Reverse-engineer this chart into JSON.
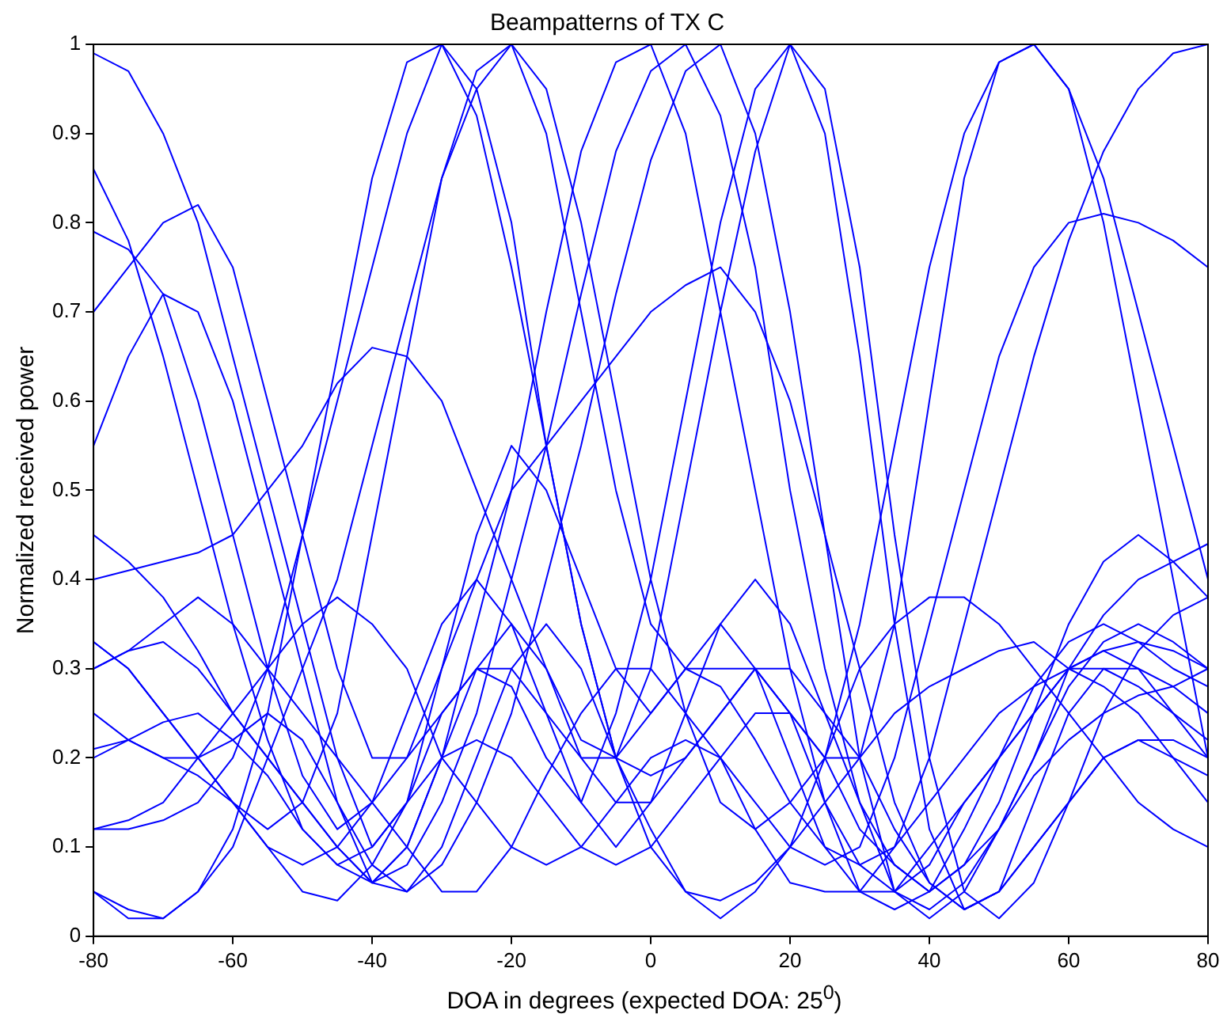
{
  "chart_data": {
    "type": "line",
    "title": "Beampatterns of TX C",
    "xlabel": "DOA in degrees (expected DOA: 25$^{0}$)",
    "ylabel": "Normalized received power",
    "x": [
      -80,
      -75,
      -70,
      -65,
      -60,
      -55,
      -50,
      -45,
      -40,
      -35,
      -30,
      -25,
      -20,
      -15,
      -10,
      -5,
      0,
      5,
      10,
      15,
      20,
      25,
      30,
      35,
      40,
      45,
      50,
      55,
      60,
      65,
      70,
      75,
      80
    ],
    "xlim": [
      -80,
      80
    ],
    "xticks": [
      -80,
      -60,
      -40,
      -20,
      0,
      20,
      40,
      60,
      80
    ],
    "ylim": [
      0,
      1
    ],
    "yticks": [
      0,
      0.1,
      0.2,
      0.3,
      0.4,
      0.5,
      0.6,
      0.7,
      0.8,
      0.9,
      1
    ],
    "grid": false,
    "legend": false,
    "series": [
      {
        "color": "#0000ff",
        "values": [
          0.99,
          0.97,
          0.9,
          0.8,
          0.65,
          0.5,
          0.35,
          0.2,
          0.1,
          0.15,
          0.3,
          0.45,
          0.55,
          0.5,
          0.4,
          0.3,
          0.25,
          0.3,
          0.35,
          0.3,
          0.2,
          0.1,
          0.05,
          0.05,
          0.1,
          0.15,
          0.2,
          0.25,
          0.3,
          0.32,
          0.3,
          0.25,
          0.2
        ]
      },
      {
        "color": "#0000ff",
        "values": [
          0.12,
          0.12,
          0.13,
          0.15,
          0.2,
          0.3,
          0.45,
          0.6,
          0.75,
          0.9,
          1.0,
          0.95,
          0.8,
          0.55,
          0.35,
          0.2,
          0.18,
          0.2,
          0.25,
          0.3,
          0.25,
          0.15,
          0.08,
          0.05,
          0.08,
          0.15,
          0.2,
          0.25,
          0.3,
          0.32,
          0.33,
          0.32,
          0.3
        ]
      },
      {
        "color": "#0000ff",
        "values": [
          0.33,
          0.3,
          0.25,
          0.2,
          0.15,
          0.12,
          0.15,
          0.25,
          0.45,
          0.65,
          0.85,
          0.97,
          1.0,
          0.9,
          0.7,
          0.5,
          0.35,
          0.3,
          0.3,
          0.3,
          0.25,
          0.2,
          0.12,
          0.08,
          0.05,
          0.08,
          0.12,
          0.18,
          0.22,
          0.25,
          0.27,
          0.28,
          0.3
        ]
      },
      {
        "color": "#0000ff",
        "values": [
          0.05,
          0.02,
          0.02,
          0.05,
          0.1,
          0.2,
          0.3,
          0.4,
          0.55,
          0.7,
          0.85,
          0.95,
          1.0,
          0.95,
          0.8,
          0.6,
          0.4,
          0.25,
          0.15,
          0.12,
          0.15,
          0.2,
          0.3,
          0.35,
          0.38,
          0.38,
          0.35,
          0.3,
          0.25,
          0.2,
          0.15,
          0.12,
          0.1
        ]
      },
      {
        "color": "#0000ff",
        "values": [
          0.45,
          0.42,
          0.38,
          0.32,
          0.25,
          0.2,
          0.15,
          0.1,
          0.06,
          0.1,
          0.2,
          0.35,
          0.5,
          0.7,
          0.88,
          0.98,
          1.0,
          0.9,
          0.7,
          0.5,
          0.3,
          0.15,
          0.05,
          0.03,
          0.05,
          0.12,
          0.2,
          0.28,
          0.33,
          0.35,
          0.33,
          0.3,
          0.28
        ]
      },
      {
        "color": "#0000ff",
        "values": [
          0.3,
          0.32,
          0.33,
          0.3,
          0.25,
          0.2,
          0.15,
          0.1,
          0.06,
          0.08,
          0.15,
          0.25,
          0.4,
          0.55,
          0.72,
          0.88,
          0.97,
          1.0,
          0.92,
          0.75,
          0.5,
          0.3,
          0.15,
          0.05,
          0.03,
          0.06,
          0.12,
          0.2,
          0.3,
          0.36,
          0.4,
          0.42,
          0.44
        ]
      },
      {
        "color": "#0000ff",
        "values": [
          0.25,
          0.22,
          0.2,
          0.2,
          0.22,
          0.25,
          0.22,
          0.15,
          0.08,
          0.05,
          0.08,
          0.15,
          0.25,
          0.4,
          0.55,
          0.72,
          0.87,
          0.97,
          1.0,
          0.9,
          0.7,
          0.45,
          0.2,
          0.05,
          0.02,
          0.05,
          0.12,
          0.2,
          0.28,
          0.33,
          0.35,
          0.33,
          0.3
        ]
      },
      {
        "color": "#0000ff",
        "values": [
          0.2,
          0.22,
          0.24,
          0.25,
          0.22,
          0.18,
          0.12,
          0.08,
          0.06,
          0.1,
          0.2,
          0.3,
          0.35,
          0.3,
          0.22,
          0.2,
          0.3,
          0.5,
          0.7,
          0.88,
          1.0,
          0.9,
          0.65,
          0.35,
          0.12,
          0.03,
          0.05,
          0.15,
          0.25,
          0.3,
          0.3,
          0.28,
          0.25
        ]
      },
      {
        "color": "#0000ff",
        "values": [
          0.33,
          0.3,
          0.25,
          0.2,
          0.15,
          0.1,
          0.05,
          0.04,
          0.08,
          0.15,
          0.25,
          0.3,
          0.28,
          0.2,
          0.15,
          0.25,
          0.4,
          0.6,
          0.8,
          0.95,
          1.0,
          0.95,
          0.75,
          0.45,
          0.2,
          0.05,
          0.02,
          0.06,
          0.15,
          0.25,
          0.32,
          0.36,
          0.38
        ]
      },
      {
        "color": "#0000ff",
        "values": [
          0.55,
          0.65,
          0.72,
          0.7,
          0.6,
          0.45,
          0.3,
          0.15,
          0.06,
          0.05,
          0.1,
          0.2,
          0.3,
          0.35,
          0.3,
          0.2,
          0.12,
          0.05,
          0.02,
          0.05,
          0.1,
          0.2,
          0.35,
          0.55,
          0.75,
          0.9,
          0.98,
          1.0,
          0.95,
          0.8,
          0.6,
          0.4,
          0.2
        ]
      },
      {
        "color": "#0000ff",
        "values": [
          0.3,
          0.32,
          0.35,
          0.38,
          0.35,
          0.3,
          0.25,
          0.2,
          0.15,
          0.1,
          0.05,
          0.05,
          0.1,
          0.18,
          0.25,
          0.3,
          0.3,
          0.25,
          0.2,
          0.12,
          0.06,
          0.05,
          0.05,
          0.1,
          0.2,
          0.35,
          0.5,
          0.65,
          0.78,
          0.88,
          0.95,
          0.99,
          1.0
        ]
      },
      {
        "color": "#0000ff",
        "values": [
          0.86,
          0.78,
          0.65,
          0.5,
          0.35,
          0.22,
          0.12,
          0.08,
          0.1,
          0.15,
          0.2,
          0.22,
          0.2,
          0.15,
          0.1,
          0.08,
          0.1,
          0.15,
          0.2,
          0.25,
          0.25,
          0.2,
          0.2,
          0.35,
          0.6,
          0.85,
          0.98,
          1.0,
          0.95,
          0.85,
          0.7,
          0.55,
          0.4
        ]
      },
      {
        "color": "#0000ff",
        "values": [
          0.79,
          0.77,
          0.72,
          0.6,
          0.45,
          0.3,
          0.18,
          0.12,
          0.15,
          0.25,
          0.35,
          0.4,
          0.35,
          0.25,
          0.15,
          0.1,
          0.15,
          0.25,
          0.35,
          0.4,
          0.35,
          0.25,
          0.15,
          0.08,
          0.05,
          0.08,
          0.15,
          0.25,
          0.35,
          0.42,
          0.45,
          0.42,
          0.38
        ]
      },
      {
        "color": "#0000ff",
        "values": [
          0.7,
          0.75,
          0.8,
          0.82,
          0.75,
          0.6,
          0.45,
          0.3,
          0.2,
          0.2,
          0.25,
          0.3,
          0.3,
          0.25,
          0.2,
          0.2,
          0.25,
          0.3,
          0.28,
          0.22,
          0.15,
          0.1,
          0.08,
          0.1,
          0.15,
          0.2,
          0.25,
          0.28,
          0.3,
          0.3,
          0.28,
          0.25,
          0.22
        ]
      },
      {
        "color": "#0000ff",
        "values": [
          0.4,
          0.41,
          0.42,
          0.43,
          0.45,
          0.5,
          0.55,
          0.62,
          0.66,
          0.65,
          0.6,
          0.5,
          0.4,
          0.3,
          0.2,
          0.15,
          0.15,
          0.2,
          0.25,
          0.3,
          0.3,
          0.25,
          0.2,
          0.12,
          0.06,
          0.03,
          0.05,
          0.1,
          0.15,
          0.2,
          0.22,
          0.2,
          0.18
        ]
      },
      {
        "color": "#0000ff",
        "values": [
          0.21,
          0.22,
          0.2,
          0.18,
          0.15,
          0.1,
          0.08,
          0.1,
          0.15,
          0.2,
          0.3,
          0.4,
          0.5,
          0.55,
          0.6,
          0.65,
          0.7,
          0.73,
          0.75,
          0.7,
          0.6,
          0.45,
          0.3,
          0.15,
          0.06,
          0.03,
          0.05,
          0.1,
          0.15,
          0.2,
          0.22,
          0.22,
          0.2
        ]
      },
      {
        "color": "#0000ff",
        "values": [
          0.12,
          0.13,
          0.15,
          0.2,
          0.25,
          0.3,
          0.35,
          0.38,
          0.35,
          0.3,
          0.2,
          0.15,
          0.1,
          0.08,
          0.1,
          0.15,
          0.2,
          0.22,
          0.2,
          0.15,
          0.1,
          0.08,
          0.1,
          0.2,
          0.35,
          0.5,
          0.65,
          0.75,
          0.8,
          0.81,
          0.8,
          0.78,
          0.75
        ]
      },
      {
        "color": "#0000ff",
        "values": [
          0.05,
          0.03,
          0.02,
          0.05,
          0.12,
          0.25,
          0.45,
          0.65,
          0.85,
          0.98,
          1.0,
          0.92,
          0.75,
          0.55,
          0.35,
          0.2,
          0.1,
          0.05,
          0.04,
          0.06,
          0.1,
          0.15,
          0.2,
          0.25,
          0.28,
          0.3,
          0.32,
          0.33,
          0.3,
          0.28,
          0.25,
          0.2,
          0.15
        ]
      }
    ]
  }
}
